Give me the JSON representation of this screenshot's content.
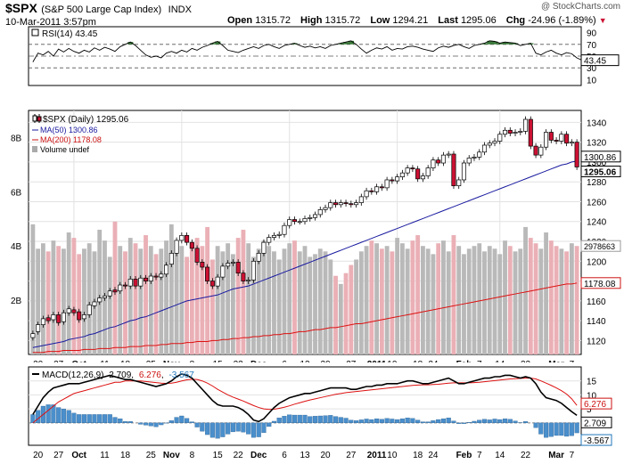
{
  "header": {
    "symbol": "$SPX",
    "name": "(S&P 500 Large Cap Index)",
    "exchange": "INDX",
    "datetime": "10-Mar-2011 3:57pm",
    "open_label": "Open",
    "open": "1315.72",
    "high_label": "High",
    "high": "1315.72",
    "low_label": "Low",
    "low": "1294.21",
    "last_label": "Last",
    "last": "1295.06",
    "chg_label": "Chg",
    "chg": "-24.96 (-1.89%)",
    "watermark": "@ StockCharts.com",
    "down_color": "#cc1133"
  },
  "chart_data": [
    {
      "type": "line",
      "panel": "rsi",
      "legend": "RSI(14) 43.45",
      "last_value_label": "43.45",
      "y_ticks": [
        10,
        30,
        50,
        70,
        90
      ],
      "ylim": [
        0,
        100
      ],
      "reference_lines": [
        30,
        50,
        70
      ],
      "series": [
        {
          "values": [
            40,
            55,
            52,
            58,
            50,
            62,
            57,
            63,
            58,
            55,
            60,
            57,
            64,
            60,
            65,
            62,
            58,
            66,
            70,
            74,
            68,
            60,
            52,
            48,
            50,
            47,
            55,
            58,
            55,
            60,
            57,
            63,
            60,
            65,
            68,
            72,
            75,
            68,
            60,
            58,
            56,
            60,
            63,
            66,
            63,
            68,
            70,
            66,
            63,
            68,
            70,
            72,
            68,
            65,
            67,
            64,
            66,
            63,
            68,
            70,
            72,
            74,
            76,
            70,
            62,
            55,
            60,
            64,
            62,
            66,
            60,
            63,
            62,
            66,
            67,
            65,
            62,
            60,
            58,
            64,
            67,
            65,
            68,
            70,
            66,
            63,
            68,
            70,
            72,
            76,
            75,
            72,
            74,
            73,
            72,
            68,
            70,
            72,
            55,
            52,
            57,
            60,
            55,
            52,
            56,
            54,
            47,
            43
          ]
        }
      ]
    },
    {
      "type": "candlestick",
      "panel": "price",
      "legend": [
        "$SPX (Daily) 1295.06",
        "MA(50) 1300.86",
        "MA(200) 1178.08",
        "Volume undef"
      ],
      "y_ticks": [
        1120,
        1140,
        1160,
        1180,
        1200,
        1220,
        1240,
        1260,
        1280,
        1300,
        1320,
        1340
      ],
      "ylim": [
        1106,
        1352
      ],
      "volume_ticks": [
        "2B",
        "4B",
        "6B",
        "8B"
      ],
      "volume_ylim": [
        0,
        9
      ],
      "price_flags": [
        "1300.86",
        "1295.06",
        "1178.08"
      ],
      "volume_flag": "2978663",
      "x_labels": [
        "20",
        "27",
        "Oct",
        "11",
        "18",
        "25",
        "Nov",
        "8",
        "15",
        "22",
        "Dec",
        "6",
        "13",
        "20",
        "27",
        "2011",
        "10",
        "18",
        "24",
        "Feb",
        "7",
        "14",
        "22",
        "Mar",
        "7"
      ],
      "close": [
        1127,
        1136,
        1142,
        1140,
        1146,
        1138,
        1148,
        1152,
        1148,
        1141,
        1146,
        1156,
        1159,
        1163,
        1165,
        1170,
        1169,
        1176,
        1175,
        1182,
        1175,
        1183,
        1180,
        1185,
        1184,
        1187,
        1196,
        1208,
        1221,
        1226,
        1219,
        1213,
        1199,
        1194,
        1180,
        1175,
        1184,
        1195,
        1198,
        1199,
        1188,
        1180,
        1181,
        1200,
        1208,
        1219,
        1224,
        1226,
        1227,
        1236,
        1242,
        1240,
        1240,
        1243,
        1244,
        1247,
        1252,
        1254,
        1259,
        1257,
        1259,
        1258,
        1257,
        1259,
        1265,
        1271,
        1270,
        1275,
        1274,
        1282,
        1281,
        1285,
        1289,
        1294,
        1293,
        1283,
        1286,
        1294,
        1302,
        1299,
        1307,
        1308,
        1276,
        1282,
        1299,
        1304,
        1305,
        1310,
        1317,
        1319,
        1321,
        1328,
        1332,
        1329,
        1330,
        1331,
        1343,
        1316,
        1307,
        1315,
        1330,
        1322,
        1321,
        1328,
        1319,
        1320,
        1295
      ],
      "open": [
        1123,
        1129,
        1136,
        1143,
        1141,
        1146,
        1139,
        1148,
        1151,
        1149,
        1142,
        1146,
        1155,
        1159,
        1163,
        1165,
        1171,
        1170,
        1176,
        1175,
        1182,
        1175,
        1183,
        1180,
        1185,
        1184,
        1187,
        1197,
        1208,
        1221,
        1226,
        1219,
        1213,
        1199,
        1194,
        1180,
        1175,
        1184,
        1195,
        1198,
        1199,
        1188,
        1180,
        1181,
        1200,
        1208,
        1219,
        1224,
        1226,
        1227,
        1236,
        1242,
        1240,
        1240,
        1243,
        1244,
        1247,
        1252,
        1254,
        1259,
        1257,
        1259,
        1258,
        1257,
        1259,
        1265,
        1271,
        1270,
        1275,
        1274,
        1282,
        1281,
        1285,
        1289,
        1294,
        1293,
        1283,
        1286,
        1294,
        1302,
        1299,
        1307,
        1308,
        1276,
        1282,
        1299,
        1304,
        1305,
        1310,
        1317,
        1319,
        1321,
        1328,
        1332,
        1329,
        1330,
        1331,
        1343,
        1316,
        1307,
        1315,
        1330,
        1322,
        1321,
        1328,
        1319,
        1320
      ],
      "ma50": [
        1113,
        1114,
        1115,
        1116,
        1117,
        1118,
        1119,
        1121,
        1122,
        1123,
        1124,
        1126,
        1127,
        1129,
        1131,
        1133,
        1134,
        1136,
        1138,
        1140,
        1141,
        1143,
        1144,
        1146,
        1148,
        1150,
        1152,
        1154,
        1156,
        1158,
        1160,
        1161,
        1162,
        1163,
        1164,
        1165,
        1166,
        1168,
        1170,
        1172,
        1173,
        1174,
        1175,
        1177,
        1179,
        1181,
        1183,
        1185,
        1187,
        1189,
        1191,
        1193,
        1195,
        1197,
        1199,
        1201,
        1203,
        1205,
        1207,
        1209,
        1211,
        1213,
        1215,
        1217,
        1219,
        1221,
        1223,
        1225,
        1227,
        1229,
        1231,
        1233,
        1235,
        1237,
        1239,
        1241,
        1243,
        1245,
        1247,
        1249,
        1251,
        1253,
        1255,
        1257,
        1259,
        1261,
        1263,
        1265,
        1267,
        1269,
        1271,
        1273,
        1275,
        1277,
        1279,
        1281,
        1283,
        1285,
        1287,
        1289,
        1291,
        1293,
        1295,
        1297,
        1298,
        1300,
        1301
      ],
      "ma200": [
        1108,
        1108,
        1108,
        1109,
        1109,
        1109,
        1110,
        1110,
        1110,
        1110,
        1111,
        1111,
        1111,
        1112,
        1112,
        1112,
        1113,
        1113,
        1113,
        1114,
        1114,
        1114,
        1115,
        1115,
        1115,
        1116,
        1116,
        1117,
        1117,
        1117,
        1118,
        1118,
        1119,
        1119,
        1119,
        1120,
        1120,
        1121,
        1121,
        1122,
        1122,
        1123,
        1123,
        1124,
        1124,
        1125,
        1125,
        1126,
        1126,
        1127,
        1127,
        1128,
        1129,
        1129,
        1130,
        1131,
        1131,
        1132,
        1133,
        1133,
        1134,
        1135,
        1136,
        1137,
        1137,
        1138,
        1139,
        1140,
        1141,
        1142,
        1143,
        1144,
        1145,
        1146,
        1147,
        1148,
        1149,
        1150,
        1151,
        1152,
        1153,
        1154,
        1155,
        1156,
        1157,
        1158,
        1159,
        1160,
        1161,
        1162,
        1163,
        1164,
        1165,
        1166,
        1167,
        1168,
        1169,
        1170,
        1171,
        1172,
        1173,
        1174,
        1175,
        1176,
        1177,
        1177,
        1178
      ],
      "volume": [
        4.8,
        3.9,
        4.1,
        3.8,
        4.2,
        4.0,
        3.9,
        4.5,
        4.3,
        3.7,
        3.9,
        4.1,
        3.8,
        4.6,
        4.2,
        3.6,
        4.9,
        4.0,
        3.8,
        4.3,
        4.1,
        3.9,
        4.4,
        4.0,
        3.7,
        3.9,
        4.2,
        4.8,
        3.9,
        4.0,
        3.6,
        4.1,
        4.3,
        4.0,
        4.7,
        3.5,
        4.0,
        3.8,
        4.1,
        3.7,
        4.3,
        4.6,
        4.1,
        3.6,
        3.9,
        4.2,
        4.0,
        3.8,
        3.5,
        3.9,
        4.1,
        4.2,
        3.8,
        4.0,
        3.6,
        3.7,
        3.9,
        3.8,
        3.5,
        2.9,
        2.6,
        3.0,
        3.3,
        3.5,
        3.8,
        4.0,
        4.2,
        4.1,
        3.9,
        4.0,
        3.8,
        4.3,
        4.1,
        3.9,
        4.2,
        4.4,
        4.0,
        3.9,
        3.7,
        4.1,
        4.2,
        3.8,
        4.4,
        4.0,
        3.7,
        3.9,
        4.0,
        4.1,
        3.8,
        4.0,
        3.9,
        3.7,
        4.2,
        4.0,
        3.8,
        3.9,
        4.7,
        4.3,
        4.1,
        3.9,
        4.5,
        4.2,
        4.0,
        3.9,
        3.8,
        4.1,
        4.0
      ]
    },
    {
      "type": "line",
      "panel": "macd",
      "legend_prefix": "MACD(12,26,9)",
      "legend_values": [
        "2.709",
        "6.276",
        "-3.567"
      ],
      "y_ticks": [
        0,
        5,
        10,
        15
      ],
      "ylim": [
        -8,
        20
      ],
      "value_flags": [
        "6.276",
        "2.709",
        "-3.567"
      ],
      "x_labels": [
        "20",
        "27",
        "Oct",
        "11",
        "18",
        "25",
        "Nov",
        "8",
        "15",
        "22",
        "Dec",
        "6",
        "13",
        "20",
        "27",
        "2011",
        "10",
        "18",
        "24",
        "Feb",
        "7",
        "14",
        "22",
        "Mar",
        "7"
      ],
      "series": [
        {
          "name": "MACD",
          "values": [
            3,
            6,
            9,
            11,
            12.5,
            13,
            13.5,
            14,
            14,
            14,
            14.5,
            15,
            15.5,
            16,
            16.5,
            17,
            16.5,
            16,
            15.5,
            15.5,
            15,
            14.5,
            14,
            13.5,
            13,
            13.5,
            14,
            15,
            16.5,
            17.5,
            17,
            16,
            14,
            12,
            10,
            8,
            6.5,
            6,
            6,
            6,
            5.5,
            4.5,
            3,
            1,
            0.5,
            1.5,
            3.5,
            5.5,
            7,
            8,
            9,
            9.5,
            10,
            10.5,
            10.5,
            11,
            11.5,
            12,
            12.5,
            12.5,
            12.5,
            12.5,
            12,
            12,
            12.5,
            13,
            13,
            13.5,
            13.5,
            14,
            14,
            14,
            14.5,
            15,
            15,
            14.5,
            14,
            14,
            14.5,
            15,
            15.5,
            16,
            15,
            14,
            14,
            14.5,
            15,
            15.5,
            16,
            16,
            16.5,
            16.5,
            17,
            17,
            16.5,
            16,
            16.5,
            16,
            14,
            11,
            9,
            8.5,
            8,
            7,
            5.5,
            4,
            2.709
          ]
        },
        {
          "name": "Signal",
          "values": [
            0,
            1.5,
            3,
            4.5,
            6,
            7.5,
            8.5,
            9.5,
            10.5,
            11,
            11.5,
            12,
            12.5,
            13,
            13.5,
            14,
            14.5,
            14.5,
            15,
            15,
            15,
            15,
            14.8,
            14.6,
            14.4,
            14.2,
            14.1,
            14.2,
            14.5,
            15,
            15.4,
            15.6,
            15.5,
            15,
            14.2,
            13.2,
            12,
            11,
            10,
            9.2,
            8.5,
            7.8,
            7,
            6.2,
            5.5,
            5,
            4.8,
            4.9,
            5.2,
            5.6,
            6.1,
            6.7,
            7.2,
            7.7,
            8.2,
            8.6,
            9,
            9.4,
            9.8,
            10.2,
            10.5,
            10.8,
            11,
            11.2,
            11.4,
            11.6,
            11.8,
            12,
            12.2,
            12.4,
            12.6,
            12.8,
            13,
            13.2,
            13.4,
            13.5,
            13.6,
            13.6,
            13.7,
            13.8,
            14,
            14.2,
            14.3,
            14.3,
            14.3,
            14.3,
            14.4,
            14.5,
            14.7,
            14.9,
            15.1,
            15.3,
            15.5,
            15.7,
            15.8,
            15.9,
            16,
            16,
            15.7,
            15,
            14.2,
            13.4,
            12.5,
            11.5,
            10.3,
            8.6,
            6.276
          ]
        },
        {
          "name": "Histogram",
          "values": [
            3,
            4.5,
            6,
            6.5,
            6.5,
            5.5,
            5,
            4.5,
            3.5,
            3,
            3,
            3,
            3,
            3,
            3,
            3,
            2,
            1.5,
            0.5,
            0.5,
            0,
            -0.5,
            -0.8,
            -1.1,
            -1.4,
            -0.7,
            -0.1,
            0.8,
            2,
            2.5,
            1.6,
            0.4,
            -1.5,
            -3,
            -4.2,
            -5.2,
            -5.5,
            -5,
            -4,
            -3.2,
            -3,
            -3.3,
            -4,
            -5.2,
            -5,
            -3.5,
            -1.3,
            0.6,
            1.8,
            2.4,
            2.9,
            2.8,
            2.8,
            2.8,
            2.3,
            2.4,
            2.5,
            2.6,
            2.7,
            2.3,
            2,
            1.7,
            1,
            0.8,
            1.1,
            1.4,
            1.2,
            1.5,
            1.3,
            1.6,
            1.4,
            1.2,
            1.5,
            1.8,
            1.6,
            1,
            0.4,
            0.4,
            0.8,
            1.2,
            1.5,
            1.8,
            0.7,
            -0.3,
            -0.3,
            0.2,
            0.6,
            1,
            1.3,
            1.1,
            1.4,
            1.2,
            1.5,
            1.3,
            0.7,
            0.1,
            0.5,
            0,
            -1.7,
            -4,
            -5.2,
            -4.9,
            -4.5,
            -4.5,
            -4.8,
            -4.6,
            -3.567
          ]
        }
      ]
    }
  ]
}
